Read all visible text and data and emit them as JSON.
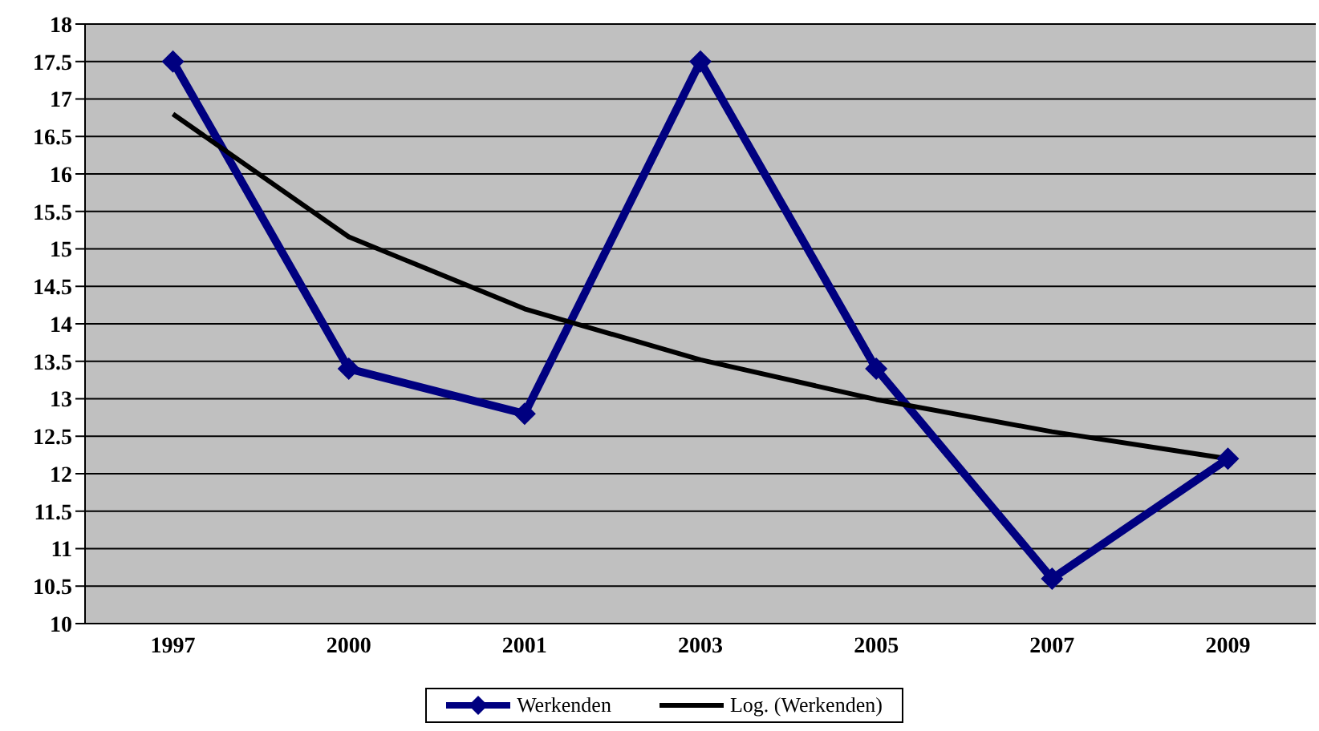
{
  "chart_data": {
    "type": "line",
    "categories": [
      "1997",
      "2000",
      "2001",
      "2003",
      "2005",
      "2007",
      "2009"
    ],
    "series": [
      {
        "name": "Werkenden",
        "color": "#000080",
        "values": [
          17.5,
          13.4,
          12.8,
          17.5,
          13.4,
          10.6,
          12.2
        ],
        "marker": "diamond"
      },
      {
        "name": "Log. (Werkenden)",
        "color": "#000000",
        "values": [
          16.8,
          15.16,
          14.2,
          13.52,
          12.99,
          12.56,
          12.2
        ],
        "marker": "none"
      }
    ],
    "ylim": [
      10,
      18
    ],
    "yticks": [
      10,
      10.5,
      11,
      11.5,
      12,
      12.5,
      13,
      13.5,
      14,
      14.5,
      15,
      15.5,
      16,
      16.5,
      17,
      17.5,
      18
    ],
    "grid": "y",
    "legend": "bottom",
    "line_style": "solid"
  }
}
